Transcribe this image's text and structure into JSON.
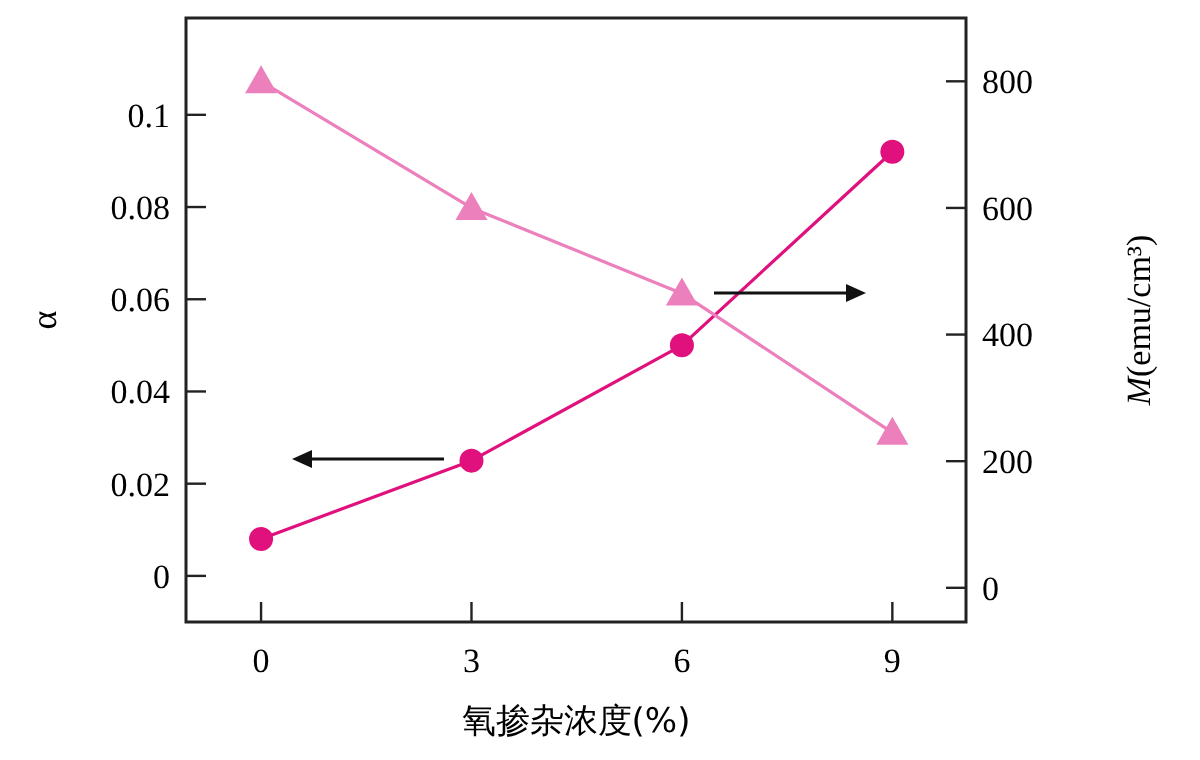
{
  "chart_data": {
    "type": "line",
    "xlabel": "氧掺杂浓度(%)",
    "ylabel": "α",
    "y2label": "M(emu/cm³)",
    "x": [
      0,
      3,
      6,
      9
    ],
    "xlim": [
      -1.07,
      10.05
    ],
    "xticks": [
      0,
      3,
      6,
      9
    ],
    "ylim": [
      -0.01,
      0.121
    ],
    "yticks": [
      0,
      0.02,
      0.04,
      0.06,
      0.08,
      0.1
    ],
    "y2lim": [
      -54,
      900
    ],
    "y2ticks": [
      0,
      200,
      400,
      600,
      800
    ],
    "grid": false,
    "series": [
      {
        "color": "#e0107c",
        "values": [
          0.008,
          0.025,
          0.05,
          0.092
        ],
        "marker": "circle"
      },
      {
        "color": "#ec80bc",
        "values": [
          800,
          600,
          465,
          245
        ],
        "marker": "triangle",
        "axis": "y2"
      }
    ]
  }
}
